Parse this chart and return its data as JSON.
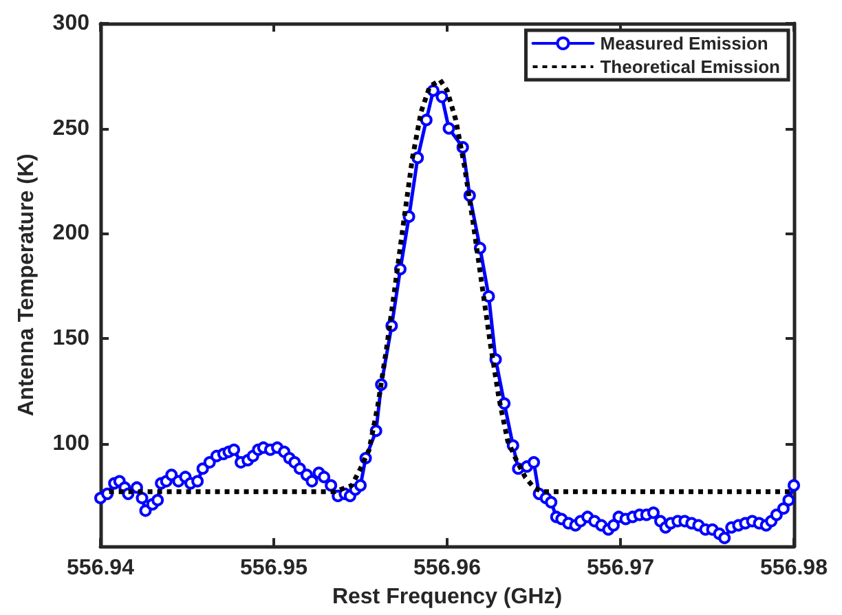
{
  "chart_data": {
    "type": "line",
    "xlabel": "Rest Frequency (GHz)",
    "ylabel": "Antenna Temperature (K)",
    "xlim": [
      556.94,
      556.98
    ],
    "xticks": [
      556.94,
      556.95,
      556.96,
      556.97,
      556.98
    ],
    "ylim": [
      51,
      300
    ],
    "yticks": [
      100,
      150,
      200,
      250,
      300
    ],
    "grid": false,
    "legend": "top right",
    "series": [
      {
        "name": "Measured Emission",
        "color": "#0000ff",
        "marker": "circle",
        "line_style": "solid",
        "x": [
          556.94,
          556.9404,
          556.9408,
          556.9411,
          556.9414,
          556.9416,
          556.9421,
          556.9424,
          556.9426,
          556.943,
          556.9433,
          556.9435,
          556.9438,
          556.9441,
          556.9445,
          556.9449,
          556.9452,
          556.9456,
          556.9459,
          556.9463,
          556.9467,
          556.9471,
          556.9474,
          556.9477,
          556.9481,
          556.9485,
          556.9488,
          556.9491,
          556.9494,
          556.9498,
          556.9502,
          556.9506,
          556.9509,
          556.9512,
          556.9515,
          556.9519,
          556.9522,
          556.9526,
          556.9529,
          556.9533,
          556.9537,
          556.9541,
          556.9544,
          556.9547,
          556.955,
          556.9553,
          556.9559,
          556.9562,
          556.9568,
          556.9573,
          556.9578,
          556.9583,
          556.9588,
          556.9592,
          556.9597,
          556.9601,
          556.9609,
          556.9613,
          556.9619,
          556.9624,
          556.9628,
          556.9633,
          556.9638,
          556.9641,
          556.9646,
          556.965,
          556.9653,
          556.9657,
          556.966,
          556.9663,
          556.9666,
          556.967,
          556.9674,
          556.9677,
          556.9681,
          556.9685,
          556.9689,
          556.9693,
          556.9696,
          556.9699,
          556.9703,
          556.9707,
          556.9711,
          556.9715,
          556.9719,
          556.9723,
          556.9726,
          556.9729,
          556.9733,
          556.9737,
          556.9741,
          556.9745,
          556.9749,
          556.9753,
          556.9757,
          556.976,
          556.9764,
          556.9768,
          556.9772,
          556.9776,
          556.978,
          556.9784,
          556.9787,
          556.979,
          556.9794,
          556.9797,
          556.98
        ],
        "values": [
          74,
          76,
          81,
          82,
          79,
          76,
          79,
          74,
          68,
          71,
          73,
          81,
          82,
          85,
          82,
          84,
          81,
          82,
          88,
          91,
          94,
          95,
          96,
          97,
          91,
          92,
          94,
          97,
          98,
          97,
          98,
          96,
          93,
          91,
          88,
          85,
          82,
          86,
          84,
          80,
          75,
          76,
          75,
          78,
          80,
          93,
          106,
          128,
          156,
          183,
          208,
          236,
          254,
          268,
          265,
          250,
          241,
          218,
          193,
          170,
          140,
          119,
          99,
          88,
          89,
          91,
          76,
          74,
          72,
          65,
          64,
          62,
          61,
          63,
          65,
          63,
          61,
          59,
          61,
          65,
          64,
          65,
          66,
          66,
          67,
          63,
          60,
          62,
          63,
          63,
          62,
          61,
          59,
          59,
          57,
          55,
          60,
          61,
          62,
          63,
          62,
          61,
          63,
          66,
          69,
          73,
          80
        ]
      },
      {
        "name": "Theoretical Emission",
        "color": "#000000",
        "marker": "none",
        "line_style": "dotted",
        "x": [
          556.9405,
          556.9535,
          556.9545,
          556.955,
          556.9555,
          556.956,
          556.9565,
          556.957,
          556.9575,
          556.958,
          556.9585,
          556.959,
          556.9596,
          556.96,
          556.9605,
          556.961,
          556.9615,
          556.962,
          556.9625,
          556.963,
          556.9635,
          556.964,
          556.9645,
          556.965,
          556.9655,
          556.98
        ],
        "values": [
          77,
          77,
          80,
          88,
          97,
          118,
          145,
          175,
          206,
          236,
          258,
          270,
          273,
          268,
          254,
          232,
          205,
          176,
          147,
          121,
          101,
          92,
          84,
          79,
          77,
          77
        ]
      }
    ]
  }
}
